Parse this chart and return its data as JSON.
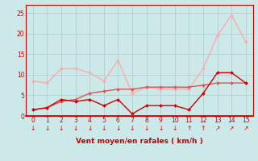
{
  "x": [
    0,
    1,
    2,
    3,
    4,
    5,
    6,
    7,
    8,
    9,
    10,
    11,
    12,
    13,
    14,
    15
  ],
  "line_rafales": [
    8.5,
    8.0,
    11.5,
    11.5,
    10.5,
    8.5,
    13.5,
    5.5,
    7.0,
    6.5,
    6.5,
    6.5,
    11.5,
    19.5,
    24.5,
    18.0
  ],
  "line_moyen": [
    1.5,
    2.0,
    4.0,
    3.5,
    4.0,
    2.5,
    4.0,
    0.5,
    2.5,
    2.5,
    2.5,
    1.5,
    5.5,
    10.5,
    10.5,
    8.0
  ],
  "line_trend": [
    1.5,
    2.0,
    3.5,
    4.0,
    5.5,
    6.0,
    6.5,
    6.5,
    7.0,
    7.0,
    7.0,
    7.0,
    7.5,
    8.0,
    8.0,
    8.0
  ],
  "color_light": "#ffaaaa",
  "color_dark": "#cc0000",
  "bg_color": "#cce8e8",
  "grid_color": "#aacccc",
  "xlabel": "Vent moyen/en rafales ( km/h )",
  "ylim": [
    0,
    27
  ],
  "xlim": [
    -0.5,
    15.5
  ],
  "yticks": [
    0,
    5,
    10,
    15,
    20,
    25
  ],
  "xticks": [
    0,
    1,
    2,
    3,
    4,
    5,
    6,
    7,
    8,
    9,
    10,
    11,
    12,
    13,
    14,
    15
  ],
  "arrows": [
    "↓",
    "↓",
    "↓",
    "↓",
    "↓",
    "↓",
    "↓",
    "↓",
    "↓",
    "↓",
    "↓",
    "↑",
    "↑",
    "↗",
    "↗",
    "↗"
  ]
}
